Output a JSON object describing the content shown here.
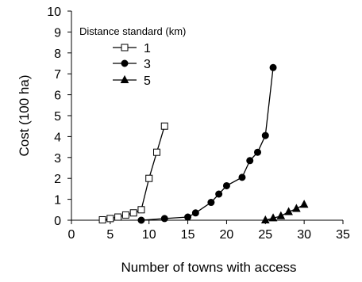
{
  "chart_data": {
    "type": "line",
    "title": "",
    "xlabel": "Number of towns with access",
    "ylabel": "Cost (100 ha)",
    "xlim": [
      0,
      35
    ],
    "ylim": [
      0,
      10
    ],
    "xticks": [
      0,
      5,
      10,
      15,
      20,
      25,
      30,
      35
    ],
    "yticks": [
      0,
      1,
      2,
      3,
      4,
      5,
      6,
      7,
      8,
      9,
      10
    ],
    "legend_title": "Distance standard (km)",
    "legend_position": "top-left",
    "grid": false,
    "series": [
      {
        "name": "1",
        "marker": "open-square",
        "color": "#000000",
        "x": [
          4,
          5,
          6,
          7,
          8,
          9,
          10,
          11,
          12
        ],
        "y": [
          0.02,
          0.08,
          0.15,
          0.25,
          0.35,
          0.5,
          2.0,
          3.25,
          4.5
        ]
      },
      {
        "name": "3",
        "marker": "filled-circle",
        "color": "#000000",
        "x": [
          9,
          12,
          15,
          16,
          18,
          19,
          20,
          22,
          23,
          24,
          25,
          26
        ],
        "y": [
          0.0,
          0.08,
          0.15,
          0.35,
          0.85,
          1.25,
          1.65,
          2.05,
          2.85,
          3.25,
          4.05,
          7.3
        ]
      },
      {
        "name": "5",
        "marker": "filled-triangle",
        "color": "#000000",
        "x": [
          25,
          26,
          27,
          28,
          29,
          30
        ],
        "y": [
          0.0,
          0.1,
          0.2,
          0.4,
          0.55,
          0.75
        ]
      }
    ]
  }
}
